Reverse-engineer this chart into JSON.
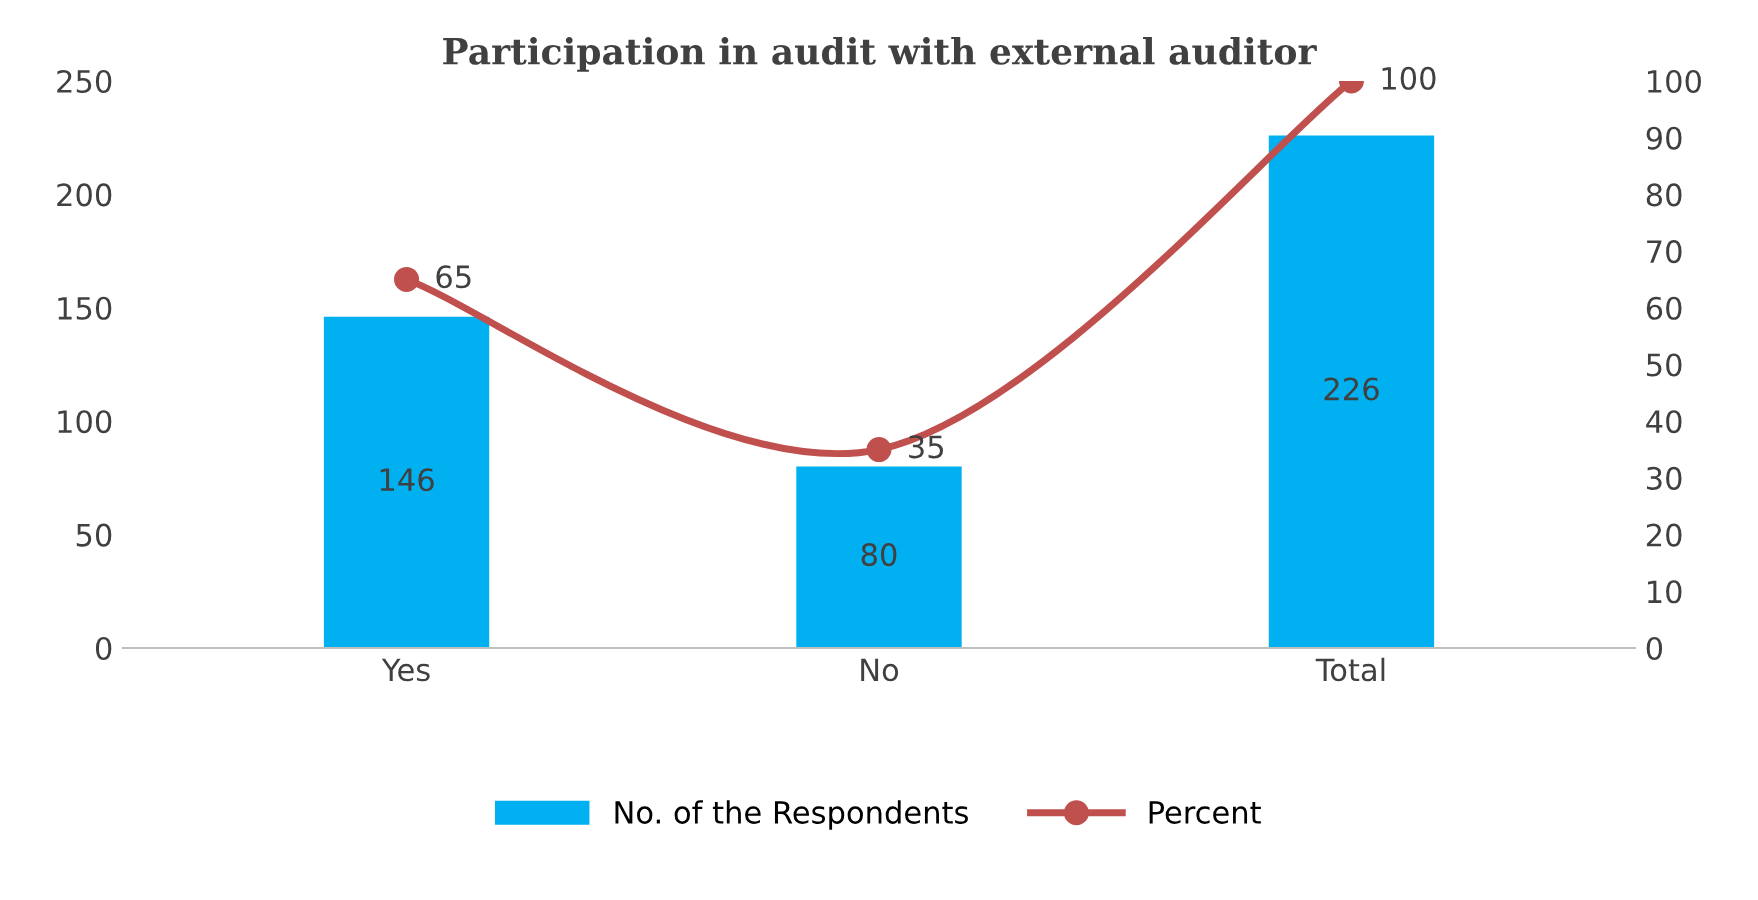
{
  "chart_data": {
    "type": "bar",
    "title": "Participation in audit with external auditor",
    "categories": [
      "Yes",
      "No",
      "Total"
    ],
    "series": [
      {
        "name": "No. of the Respondents",
        "color": "#00b0f0",
        "values": [
          146,
          80,
          226
        ]
      },
      {
        "name": "Percent",
        "type": "line",
        "axis": "y2",
        "color": "#c0504d",
        "values": [
          65,
          35,
          100
        ],
        "marker": "circle"
      }
    ],
    "ylim": [
      0,
      250
    ],
    "yticks": [
      0,
      50,
      100,
      150,
      200,
      250
    ],
    "y2lim": [
      0,
      100
    ],
    "y2ticks": [
      0,
      10,
      20,
      30,
      40,
      50,
      60,
      70,
      80,
      90,
      100
    ],
    "data_labels": true,
    "legend": "bottom",
    "grid": false
  }
}
